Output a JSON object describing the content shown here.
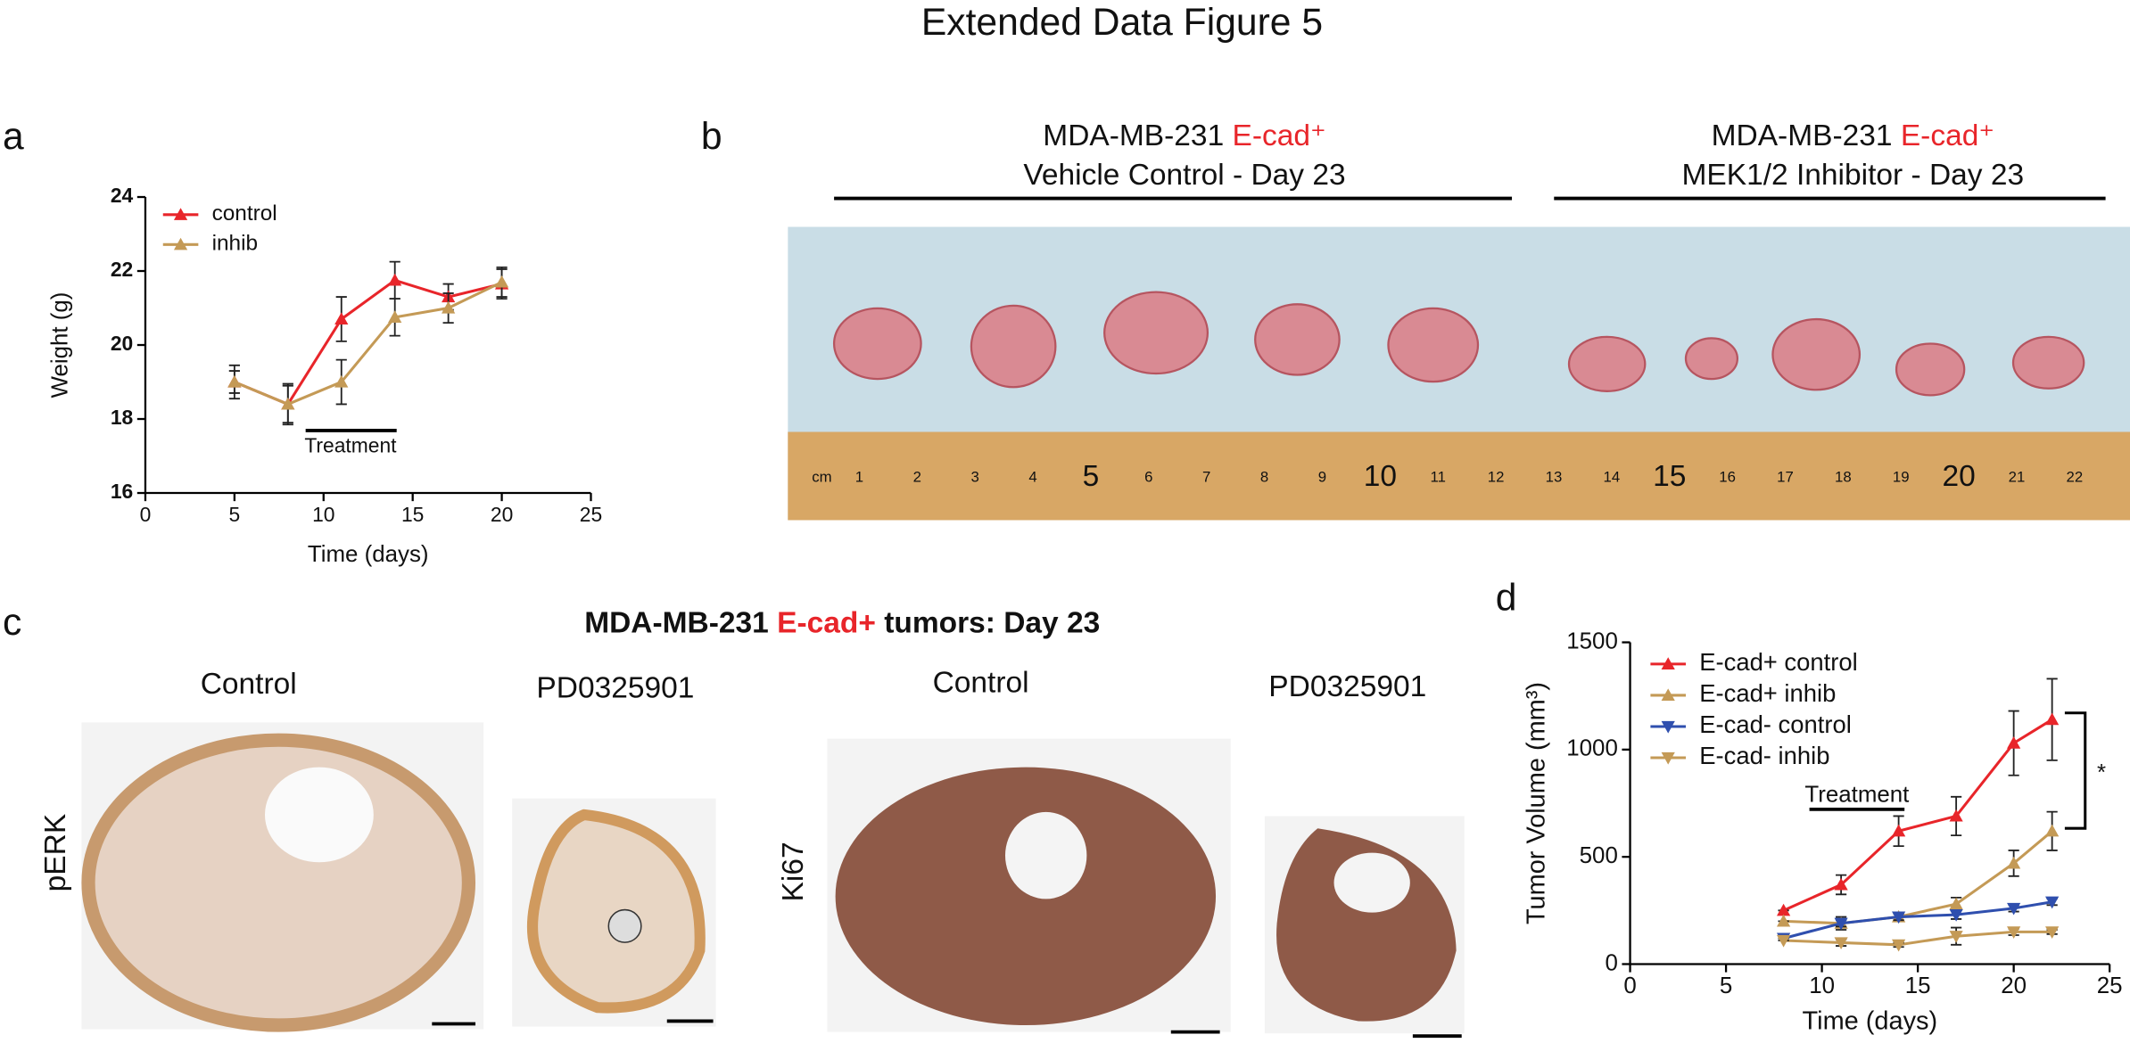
{
  "figure_title": "Extended Data Figure 5",
  "panel_labels": [
    "a",
    "b",
    "c",
    "d"
  ],
  "panel_b": {
    "groups": [
      {
        "line1": "MDA-MB-231",
        "marker": "E-cad⁺",
        "line2": "Vehicle Control - Day 23"
      },
      {
        "line1": "MDA-MB-231",
        "marker": "E-cad⁺",
        "line2": "MEK1/2 Inhibitor - Day 23"
      }
    ],
    "ruler_labels": [
      "cm",
      1,
      2,
      3,
      4,
      5,
      6,
      7,
      8,
      9,
      10,
      11,
      12,
      13,
      14,
      15,
      16,
      17,
      18,
      19,
      20,
      21,
      22
    ]
  },
  "panel_c": {
    "title": [
      "MDA-MB-231",
      "E-cad+",
      "tumors: Day 23"
    ],
    "columns": [
      "Control",
      "PD0325901",
      "Control",
      "PD0325901"
    ],
    "rows": [
      "pERK",
      "Ki67"
    ]
  },
  "chart_data": [
    {
      "type": "line",
      "xlabel": "Time (days)",
      "ylabel": "Weight (g)",
      "x": [
        5,
        8,
        11,
        14,
        17,
        20
      ],
      "series": [
        {
          "name": "control",
          "color": "#e8252a",
          "marker": "up",
          "values": [
            19.0,
            18.4,
            20.7,
            21.75,
            21.3,
            21.65
          ],
          "errors": [
            0.45,
            0.55,
            0.6,
            0.5,
            0.35,
            0.4
          ]
        },
        {
          "name": "inhib",
          "color": "#c49a56",
          "marker": "up",
          "values": [
            19.0,
            18.4,
            19.0,
            20.75,
            21.0,
            21.7
          ],
          "errors": [
            0.3,
            0.5,
            0.6,
            0.5,
            0.4,
            0.4
          ]
        }
      ],
      "xlim": [
        0,
        25
      ],
      "xticks": [
        0,
        5,
        10,
        15,
        20,
        25
      ],
      "ylim": [
        16,
        24
      ],
      "yticks": [
        16,
        18,
        20,
        22,
        24
      ],
      "annotations": [
        "Treatment"
      ]
    },
    {
      "type": "line",
      "xlabel": "Time (days)",
      "ylabel": "Tumor Volume (mm³)",
      "x": [
        8,
        11,
        14,
        17,
        20,
        22
      ],
      "series": [
        {
          "name": "E-cad+ control",
          "color": "#e8252a",
          "marker": "up",
          "values": [
            250,
            370,
            620,
            690,
            1030,
            1140
          ],
          "errors": [
            0,
            45,
            70,
            90,
            150,
            190
          ]
        },
        {
          "name": "E-cad+ inhib",
          "color": "#c49a56",
          "marker": "up",
          "values": [
            200,
            190,
            220,
            280,
            470,
            620
          ],
          "errors": [
            0,
            30,
            20,
            30,
            60,
            90
          ]
        },
        {
          "name": "E-cad- control",
          "color": "#2f4fae",
          "marker": "down",
          "values": [
            120,
            190,
            220,
            230,
            260,
            290
          ],
          "errors": [
            0,
            15,
            15,
            20,
            15,
            15
          ]
        },
        {
          "name": "E-cad- inhib",
          "color": "#c49a56",
          "marker": "down",
          "values": [
            110,
            100,
            90,
            130,
            150,
            150
          ],
          "errors": [
            0,
            15,
            10,
            40,
            15,
            10
          ]
        }
      ],
      "xlim": [
        0,
        25
      ],
      "xticks": [
        0,
        5,
        10,
        15,
        20,
        25
      ],
      "ylim": [
        0,
        1500
      ],
      "yticks": [
        0,
        500,
        1000,
        1500
      ],
      "annotations": [
        "Treatment",
        "*"
      ]
    }
  ]
}
